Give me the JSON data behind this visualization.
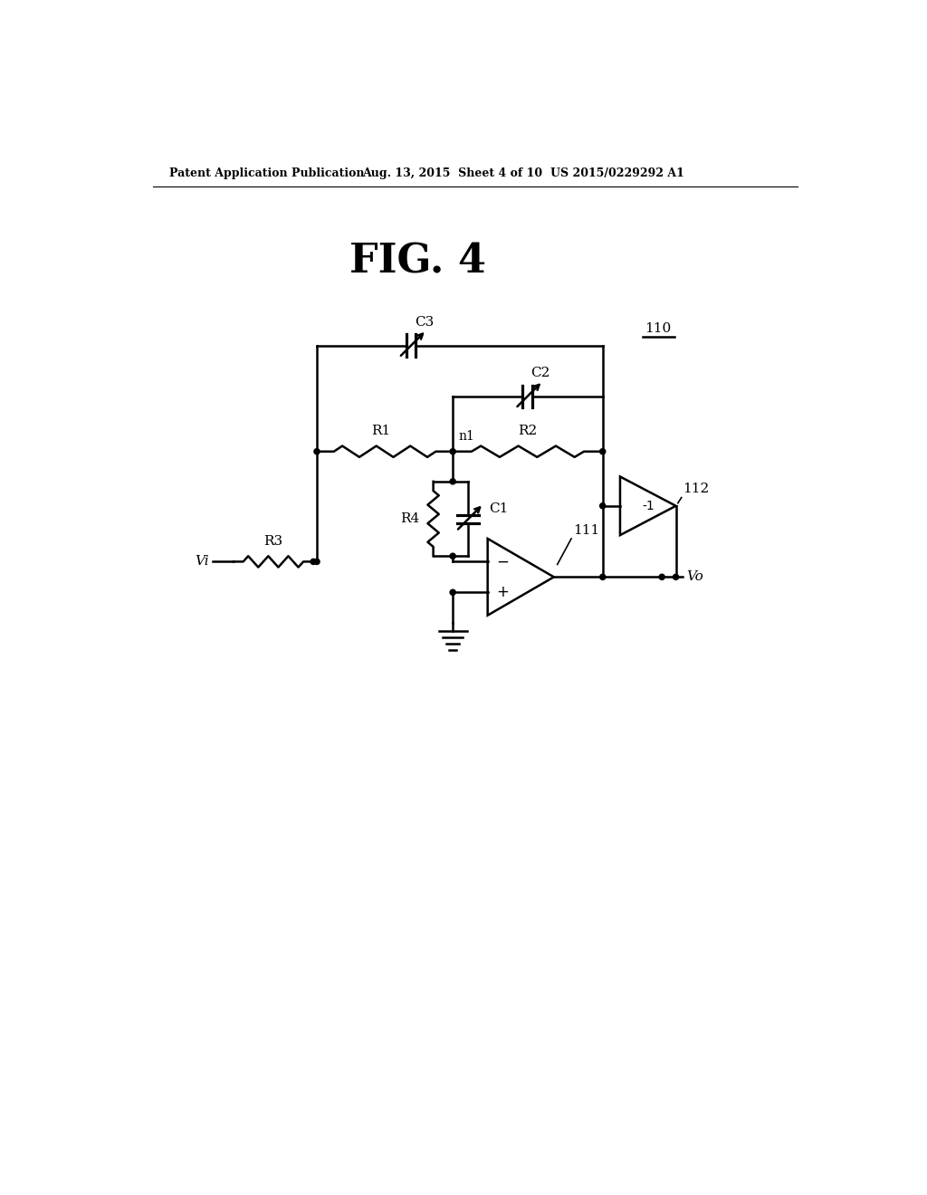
{
  "title": "FIG. 4",
  "header_left": "Patent Application Publication",
  "header_mid": "Aug. 13, 2015  Sheet 4 of 10",
  "header_right": "US 2015/0229292 A1",
  "background": "#ffffff",
  "line_color": "#000000",
  "label_110": "110",
  "label_111": "111",
  "label_112": "112",
  "label_C1": "C1",
  "label_C2": "C2",
  "label_C3": "C3",
  "label_R1": "R1",
  "label_R2": "R2",
  "label_R3": "R3",
  "label_R4": "R4",
  "label_n1": "n1",
  "label_Vi": "Vi",
  "label_Vo": "Vo",
  "label_m1": "-1"
}
